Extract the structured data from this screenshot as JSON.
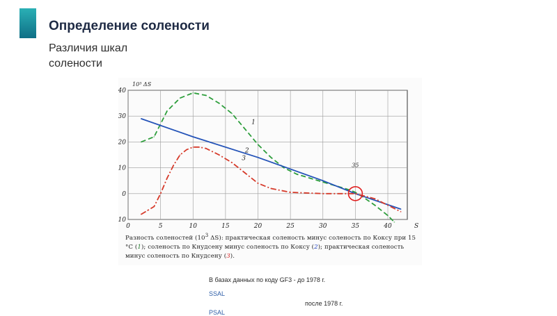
{
  "header": {
    "title": "Определение солености",
    "subtitle": "Различия шкал солености"
  },
  "figure": {
    "caption_parts": [
      "Разность соленостей (10",
      "3",
      " ΔS): практическая соленость минус соленость по Коксу при 15 °С (",
      "1",
      "); соленость по Кнудсену минус соленость по Коксу (",
      "2",
      "); практическая соленость минус соленость по Кнудсену (",
      "3",
      ")."
    ]
  },
  "notes": {
    "line1": "В базах данных по коду GF3 -   до 1978 г.",
    "line2": "SSAL",
    "line3": "после 1978 г.",
    "line4": "PSAL"
  },
  "chart_data": {
    "type": "line",
    "title": "",
    "xlabel": "S",
    "ylabel": "10³ ΔS",
    "xlim": [
      0,
      43
    ],
    "ylim": [
      -10,
      40
    ],
    "x_ticks": [
      0,
      5,
      10,
      15,
      20,
      25,
      30,
      35,
      40
    ],
    "y_ticks": [
      -10,
      0,
      10,
      20,
      30,
      40
    ],
    "grid": true,
    "annotations": [
      {
        "text": "35",
        "x": 35,
        "y": 10
      },
      {
        "text": "circle",
        "x": 35,
        "y": 0
      }
    ],
    "series": [
      {
        "name": "1",
        "style": "dashed",
        "color": "#2e9e3c",
        "x": [
          2,
          4,
          6,
          8,
          10,
          12,
          14,
          16,
          18,
          20,
          22,
          24,
          26,
          28,
          30,
          32,
          34,
          35,
          36,
          38,
          40,
          41
        ],
        "y": [
          20,
          22,
          32,
          37,
          39,
          38,
          35,
          31,
          25,
          19,
          14,
          10,
          7.5,
          6,
          4.5,
          3,
          1.5,
          0.5,
          -1,
          -4.5,
          -8.5,
          -11
        ]
      },
      {
        "name": "2",
        "style": "solid",
        "color": "#2453b8",
        "x": [
          2,
          10,
          20,
          30,
          35,
          42
        ],
        "y": [
          29,
          22,
          14,
          5,
          0,
          -6
        ]
      },
      {
        "name": "3",
        "style": "dashdot",
        "color": "#d63a2a",
        "x": [
          2,
          3,
          4,
          5,
          6,
          7,
          8,
          9,
          10,
          11,
          12,
          14,
          16,
          18,
          20,
          22,
          25,
          30,
          33,
          35,
          38,
          42
        ],
        "y": [
          -8,
          -6.5,
          -5,
          0,
          6,
          11,
          15,
          17,
          18,
          18,
          17.5,
          15,
          12,
          8,
          4,
          2,
          0.5,
          0,
          0,
          0,
          -2,
          -7
        ]
      }
    ]
  }
}
